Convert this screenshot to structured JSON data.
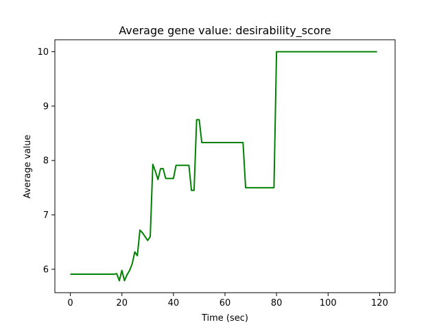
{
  "chart_data": {
    "type": "line",
    "title": "Average gene value: desirability_score",
    "xlabel": "Time (sec)",
    "ylabel": "Average value",
    "xlim": [
      -6,
      126
    ],
    "ylim": [
      5.57,
      10.22
    ],
    "xticks": [
      0,
      20,
      40,
      60,
      80,
      100,
      120
    ],
    "yticks": [
      6,
      7,
      8,
      9,
      10
    ],
    "grid": false,
    "line_color": "#008000",
    "series": [
      {
        "x": [
          0,
          2,
          4,
          6,
          8,
          10,
          12,
          14,
          16,
          17,
          18,
          19,
          20,
          21,
          22,
          23,
          24,
          25,
          26,
          27,
          28,
          29,
          30,
          31,
          32,
          33,
          34,
          35,
          36,
          37,
          38,
          39,
          40,
          41,
          42,
          43,
          44,
          45,
          46,
          47,
          48,
          49,
          50,
          51,
          52,
          55,
          60,
          65,
          67,
          68,
          70,
          75,
          79,
          80,
          85,
          90,
          95,
          100,
          105,
          110,
          115,
          119
        ],
        "y": [
          5.91,
          5.91,
          5.91,
          5.91,
          5.91,
          5.91,
          5.91,
          5.91,
          5.91,
          5.91,
          5.92,
          5.79,
          5.98,
          5.79,
          5.9,
          5.98,
          6.1,
          6.32,
          6.25,
          6.72,
          6.67,
          6.6,
          6.53,
          6.6,
          7.93,
          7.8,
          7.65,
          7.85,
          7.85,
          7.67,
          7.67,
          7.67,
          7.67,
          7.91,
          7.91,
          7.91,
          7.91,
          7.91,
          7.91,
          7.45,
          7.45,
          8.75,
          8.75,
          8.33,
          8.33,
          8.33,
          8.33,
          8.33,
          8.33,
          7.5,
          7.5,
          7.5,
          7.5,
          10.0,
          10.0,
          10.0,
          10.0,
          10.0,
          10.0,
          10.0,
          10.0,
          10.0
        ]
      }
    ]
  }
}
